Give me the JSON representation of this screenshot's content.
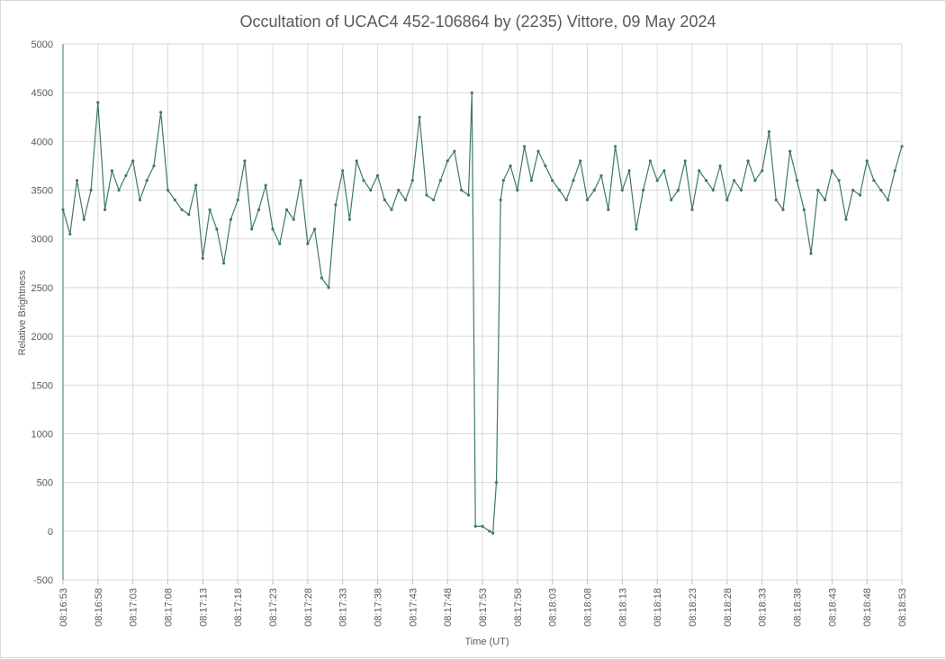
{
  "chart_data": {
    "type": "line",
    "title": "Occultation of UCAC4 452-106864 by (2235) Vittore, 09 May 2024",
    "xlabel": "Time (UT)",
    "ylabel": "Relative Brightness",
    "ylim": [
      -500,
      5000
    ],
    "yticks": [
      -500,
      0,
      500,
      1000,
      1500,
      2000,
      2500,
      3000,
      3500,
      4000,
      4500,
      5000
    ],
    "xlim": [
      "08:16:53",
      "08:18:53"
    ],
    "xticks": [
      "08:16:53",
      "08:16:58",
      "08:17:03",
      "08:17:08",
      "08:17:13",
      "08:17:18",
      "08:17:23",
      "08:17:28",
      "08:17:33",
      "08:17:38",
      "08:17:43",
      "08:17:48",
      "08:17:53",
      "08:17:58",
      "08:18:03",
      "08:18:08",
      "08:18:13",
      "08:18:18",
      "08:18:23",
      "08:18:28",
      "08:18:33",
      "08:18:38",
      "08:18:43",
      "08:18:48",
      "08:18:53"
    ],
    "grid": true,
    "legend": "none",
    "series_color": "#3f7a62",
    "series": [
      {
        "x": [
          "08:16:53.0",
          "08:16:54.0",
          "08:16:55.0",
          "08:16:56.0",
          "08:16:57.0",
          "08:16:58.0",
          "08:16:59.0",
          "08:17:00.0",
          "08:17:01.0",
          "08:17:02.0",
          "08:17:03.0",
          "08:17:04.0",
          "08:17:05.0",
          "08:17:06.0",
          "08:17:07.0",
          "08:17:08.0",
          "08:17:09.0",
          "08:17:10.0",
          "08:17:11.0",
          "08:17:12.0",
          "08:17:13.0",
          "08:17:14.0",
          "08:17:15.0",
          "08:17:16.0",
          "08:17:17.0",
          "08:17:18.0",
          "08:17:19.0",
          "08:17:20.0",
          "08:17:21.0",
          "08:17:22.0",
          "08:17:23.0",
          "08:17:24.0",
          "08:17:25.0",
          "08:17:26.0",
          "08:17:27.0",
          "08:17:28.0",
          "08:17:29.0",
          "08:17:30.0",
          "08:17:31.0",
          "08:17:32.0",
          "08:17:33.0",
          "08:17:34.0",
          "08:17:35.0",
          "08:17:36.0",
          "08:17:37.0",
          "08:17:38.0",
          "08:17:39.0",
          "08:17:40.0",
          "08:17:41.0",
          "08:17:42.0",
          "08:17:43.0",
          "08:17:44.0",
          "08:17:45.0",
          "08:17:46.0",
          "08:17:47.0",
          "08:17:48.0",
          "08:17:49.0",
          "08:17:50.0",
          "08:17:51.0",
          "08:17:51.5",
          "08:17:52.0",
          "08:17:53.0",
          "08:17:54.0",
          "08:17:54.5",
          "08:17:55.0",
          "08:17:55.6",
          "08:17:56.0",
          "08:17:57.0",
          "08:17:58.0",
          "08:17:59.0",
          "08:18:00.0",
          "08:18:01.0",
          "08:18:02.0",
          "08:18:03.0",
          "08:18:04.0",
          "08:18:05.0",
          "08:18:06.0",
          "08:18:07.0",
          "08:18:08.0",
          "08:18:09.0",
          "08:18:10.0",
          "08:18:11.0",
          "08:18:12.0",
          "08:18:13.0",
          "08:18:14.0",
          "08:18:15.0",
          "08:18:16.0",
          "08:18:17.0",
          "08:18:18.0",
          "08:18:19.0",
          "08:18:20.0",
          "08:18:21.0",
          "08:18:22.0",
          "08:18:23.0",
          "08:18:24.0",
          "08:18:25.0",
          "08:18:26.0",
          "08:18:27.0",
          "08:18:28.0",
          "08:18:29.0",
          "08:18:30.0",
          "08:18:31.0",
          "08:18:32.0",
          "08:18:33.0",
          "08:18:34.0",
          "08:18:35.0",
          "08:18:36.0",
          "08:18:37.0",
          "08:18:38.0",
          "08:18:39.0",
          "08:18:40.0",
          "08:18:41.0",
          "08:18:42.0",
          "08:18:43.0",
          "08:18:44.0",
          "08:18:45.0",
          "08:18:46.0",
          "08:18:47.0",
          "08:18:48.0",
          "08:18:49.0",
          "08:18:50.0",
          "08:18:51.0",
          "08:18:52.0",
          "08:18:53.0"
        ],
        "y": [
          3300,
          3050,
          3600,
          3200,
          3500,
          4400,
          3300,
          3700,
          3500,
          3650,
          3800,
          3400,
          3600,
          3750,
          4300,
          3500,
          3400,
          3300,
          3250,
          3550,
          2800,
          3300,
          3100,
          2750,
          3200,
          3400,
          3800,
          3100,
          3300,
          3550,
          3100,
          2950,
          3300,
          3200,
          3600,
          2950,
          3100,
          2600,
          2500,
          3350,
          3700,
          3200,
          3800,
          3600,
          3500,
          3650,
          3400,
          3300,
          3500,
          3400,
          3600,
          4250,
          3450,
          3400,
          3600,
          3800,
          3900,
          3500,
          3450,
          4500,
          50,
          50,
          0,
          -20,
          500,
          3400,
          3600,
          3750,
          3500,
          3950,
          3600,
          3900,
          3750,
          3600,
          3500,
          3400,
          3600,
          3800,
          3400,
          3500,
          3650,
          3300,
          3950,
          3500,
          3700,
          3100,
          3500,
          3800,
          3600,
          3700,
          3400,
          3500,
          3800,
          3300,
          3700,
          3600,
          3500,
          3750,
          3400,
          3600,
          3500,
          3800,
          3600,
          3700,
          4100,
          3400,
          3300,
          3900,
          3600,
          3300,
          2850,
          3500,
          3400,
          3700,
          3600,
          3200,
          3500,
          3450,
          3800,
          3600,
          3500,
          3400,
          3700,
          3950
        ]
      }
    ]
  }
}
